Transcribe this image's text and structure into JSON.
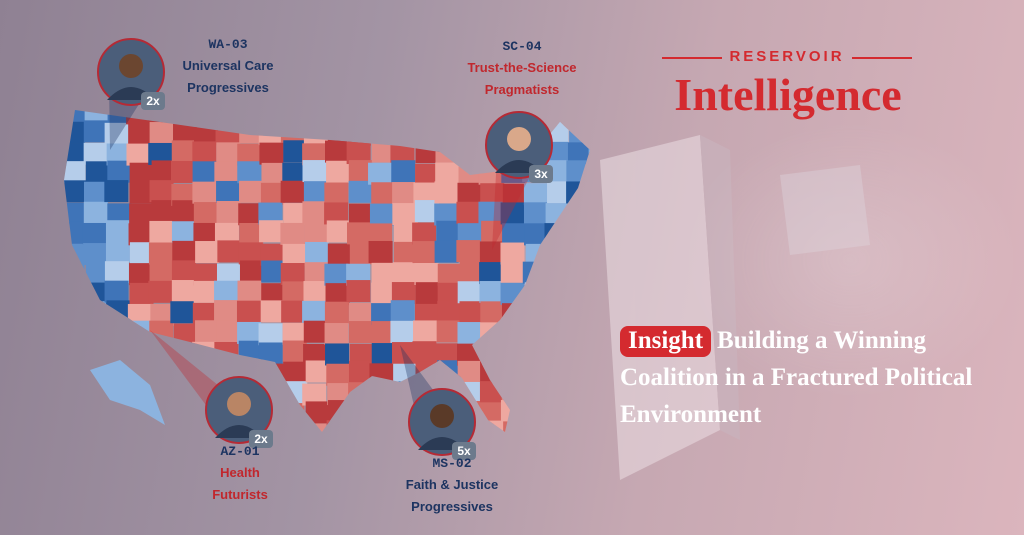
{
  "brand": {
    "line": "RESERVOIR",
    "name": "Intelligence"
  },
  "headline": {
    "tag": "Insight",
    "text": "Building a Winning Coalition in a Fractured Political Environment"
  },
  "personas": [
    {
      "district": "WA-03",
      "label_lines": [
        "Universal Care",
        "Progressives"
      ],
      "multiplier": "2x",
      "color": "#1d3461"
    },
    {
      "district": "SC-04",
      "label_lines": [
        "Trust-the-Science",
        "Pragmatists"
      ],
      "multiplier": "3x",
      "color": "#c1272d"
    },
    {
      "district": "AZ-01",
      "label_lines": [
        "Health",
        "Futurists"
      ],
      "multiplier": "2x",
      "color": "#c1272d"
    },
    {
      "district": "MS-02",
      "label_lines": [
        "Faith & Justice",
        "Progressives"
      ],
      "multiplier": "5x",
      "color": "#1d3461"
    }
  ]
}
